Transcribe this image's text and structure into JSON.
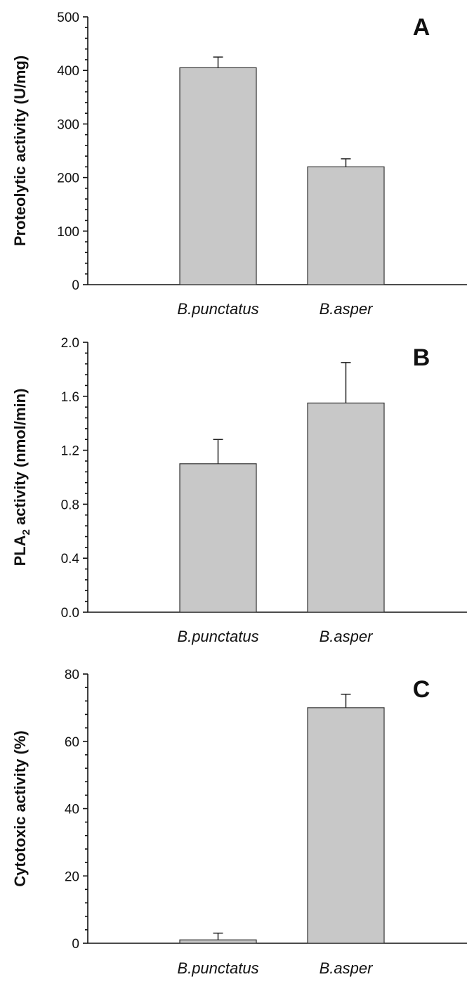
{
  "chart_data": [
    {
      "type": "bar",
      "panel_label": "A",
      "categories": [
        "B.punctatus",
        "B.asper"
      ],
      "values": [
        405,
        220
      ],
      "errors": [
        20,
        15
      ],
      "ylabel": "Proteolytic activity (U/mg)",
      "ylabel_sub": "",
      "ylabel_rest": "",
      "ylim": [
        0,
        500
      ],
      "yticks": [
        "0",
        "100",
        "200",
        "300",
        "400",
        "500"
      ],
      "colors": {
        "bar": "#c8c8c8",
        "edge": "#333333"
      }
    },
    {
      "type": "bar",
      "panel_label": "B",
      "categories": [
        "B.punctatus",
        "B.asper"
      ],
      "values": [
        1.1,
        1.55
      ],
      "errors": [
        0.18,
        0.3
      ],
      "ylabel": "PLA",
      "ylabel_sub": "2",
      "ylabel_rest": " activity (nmol/min)",
      "ylim": [
        0,
        2.0
      ],
      "yticks": [
        "0.0",
        "0.4",
        "0.8",
        "1.2",
        "1.6",
        "2.0"
      ],
      "colors": {
        "bar": "#c8c8c8",
        "edge": "#333333"
      }
    },
    {
      "type": "bar",
      "panel_label": "C",
      "categories": [
        "B.punctatus",
        "B.asper"
      ],
      "values": [
        1,
        70
      ],
      "errors": [
        2,
        4
      ],
      "ylabel": "Cytotoxic activity (%)",
      "ylabel_sub": "",
      "ylabel_rest": "",
      "ylim": [
        0,
        80
      ],
      "yticks": [
        "0",
        "20",
        "40",
        "60",
        "80"
      ],
      "colors": {
        "bar": "#c8c8c8",
        "edge": "#333333"
      }
    }
  ]
}
